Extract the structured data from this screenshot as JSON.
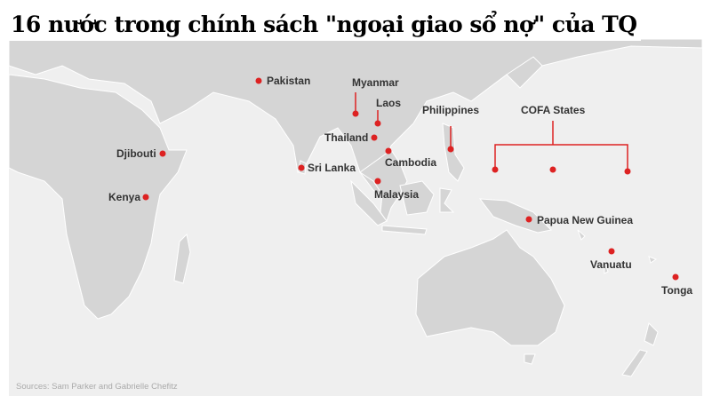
{
  "title": "16 nước trong chính sách \"ngoại giao sổ nợ\" của TQ",
  "colors": {
    "marker": "#dd2222",
    "land": "#d5d5d5",
    "sea": "#efefef",
    "border": "#ffffff"
  },
  "countries": [
    {
      "name": "Pakistan"
    },
    {
      "name": "Myanmar"
    },
    {
      "name": "Laos"
    },
    {
      "name": "Thailand"
    },
    {
      "name": "Cambodia"
    },
    {
      "name": "Philippines"
    },
    {
      "name": "COFA States"
    },
    {
      "name": "Djibouti"
    },
    {
      "name": "Sri Lanka"
    },
    {
      "name": "Kenya"
    },
    {
      "name": "Malaysia"
    },
    {
      "name": "Papua New Guinea"
    },
    {
      "name": "Vanuatu"
    },
    {
      "name": "Tonga"
    }
  ],
  "source": "Sources: Sam Parker and Gabrielle Chefitz"
}
